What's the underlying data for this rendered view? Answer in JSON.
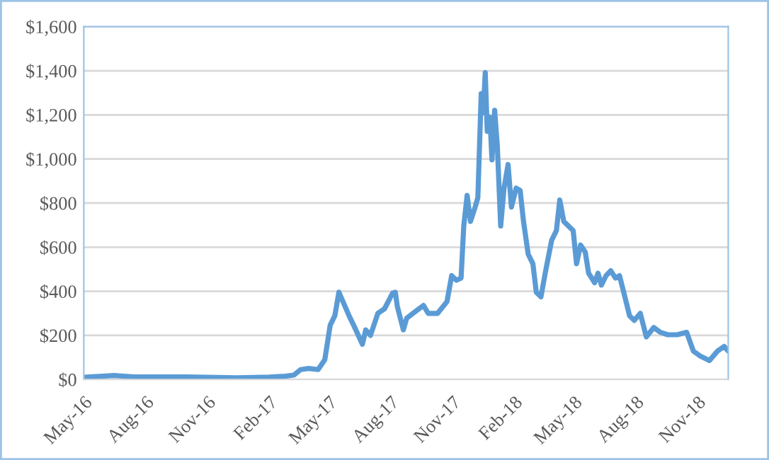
{
  "chart_data": {
    "type": "line",
    "x": [
      "2016-05-01",
      "2016-06-15",
      "2016-07-15",
      "2016-10-01",
      "2016-12-15",
      "2017-02-01",
      "2017-02-25",
      "2017-03-10",
      "2017-03-20",
      "2017-04-01",
      "2017-04-15",
      "2017-04-25",
      "2017-05-03",
      "2017-05-10",
      "2017-05-16",
      "2017-05-31",
      "2017-06-07",
      "2017-06-20",
      "2017-06-25",
      "2017-07-02",
      "2017-07-13",
      "2017-07-23",
      "2017-08-04",
      "2017-08-08",
      "2017-08-11",
      "2017-08-20",
      "2017-08-25",
      "2017-09-08",
      "2017-09-19",
      "2017-09-26",
      "2017-10-10",
      "2017-10-24",
      "2017-10-31",
      "2017-11-07",
      "2017-11-14",
      "2017-11-18",
      "2017-11-23",
      "2017-11-28",
      "2017-12-05",
      "2017-12-09",
      "2017-12-14",
      "2017-12-17",
      "2017-12-20",
      "2017-12-23",
      "2017-12-27",
      "2017-12-30",
      "2018-01-03",
      "2018-01-07",
      "2018-01-12",
      "2018-01-17",
      "2018-01-23",
      "2018-01-28",
      "2018-02-04",
      "2018-02-10",
      "2018-02-15",
      "2018-02-22",
      "2018-03-01",
      "2018-03-06",
      "2018-03-13",
      "2018-03-20",
      "2018-03-29",
      "2018-04-05",
      "2018-04-10",
      "2018-04-16",
      "2018-04-23",
      "2018-04-30",
      "2018-05-05",
      "2018-05-11",
      "2018-05-18",
      "2018-05-23",
      "2018-06-01",
      "2018-06-06",
      "2018-06-11",
      "2018-06-18",
      "2018-06-25",
      "2018-07-02",
      "2018-07-08",
      "2018-07-16",
      "2018-07-23",
      "2018-07-30",
      "2018-08-08",
      "2018-08-17",
      "2018-08-28",
      "2018-09-07",
      "2018-09-18",
      "2018-10-02",
      "2018-10-16",
      "2018-10-26",
      "2018-11-05",
      "2018-11-19",
      "2018-12-01",
      "2018-12-11",
      "2018-12-17"
    ],
    "series": [
      {
        "color": "#5b9bd5",
        "values": [
          10,
          18,
          12,
          12,
          8,
          11,
          15,
          20,
          45,
          50,
          45,
          90,
          246,
          290,
          396,
          290,
          246,
          160,
          225,
          200,
          300,
          321,
          392,
          396,
          332,
          225,
          278,
          311,
          336,
          300,
          300,
          353,
          471,
          450,
          460,
          696,
          835,
          717,
          782,
          825,
          1296,
          1210,
          1392,
          1125,
          1189,
          996,
          1221,
          1060,
          696,
          868,
          975,
          782,
          868,
          857,
          717,
          568,
          525,
          396,
          375,
          493,
          632,
          675,
          814,
          717,
          696,
          675,
          525,
          610,
          578,
          482,
          439,
          482,
          428,
          471,
          493,
          460,
          471,
          375,
          289,
          268,
          300,
          193,
          236,
          214,
          203,
          203,
          214,
          129,
          107,
          86,
          129,
          150,
          129
        ]
      }
    ],
    "xlim": [
      "2016-05-01",
      "2018-12-17"
    ],
    "xticks": [
      {
        "value": "2016-05-01",
        "label": "May-16"
      },
      {
        "value": "2016-08-01",
        "label": "Aug-16"
      },
      {
        "value": "2016-11-01",
        "label": "Nov-16"
      },
      {
        "value": "2017-02-01",
        "label": "Feb-17"
      },
      {
        "value": "2017-05-01",
        "label": "May-17"
      },
      {
        "value": "2017-08-01",
        "label": "Aug-17"
      },
      {
        "value": "2017-11-01",
        "label": "Nov-17"
      },
      {
        "value": "2018-02-01",
        "label": "Feb-18"
      },
      {
        "value": "2018-05-01",
        "label": "May-18"
      },
      {
        "value": "2018-08-01",
        "label": "Aug-18"
      },
      {
        "value": "2018-11-01",
        "label": "Nov-18"
      }
    ],
    "ylim": [
      0,
      1600
    ],
    "yticks": [
      {
        "value": 0,
        "label": "$0"
      },
      {
        "value": 200,
        "label": "$200"
      },
      {
        "value": 400,
        "label": "$400"
      },
      {
        "value": 600,
        "label": "$600"
      },
      {
        "value": 800,
        "label": "$800"
      },
      {
        "value": 1000,
        "label": "$1,000"
      },
      {
        "value": 1200,
        "label": "$1,200"
      },
      {
        "value": 1400,
        "label": "$1,400"
      },
      {
        "value": 1600,
        "label": "$1,600"
      }
    ],
    "grid": "y",
    "legend": false,
    "marker": "none",
    "line_style": "solid"
  }
}
